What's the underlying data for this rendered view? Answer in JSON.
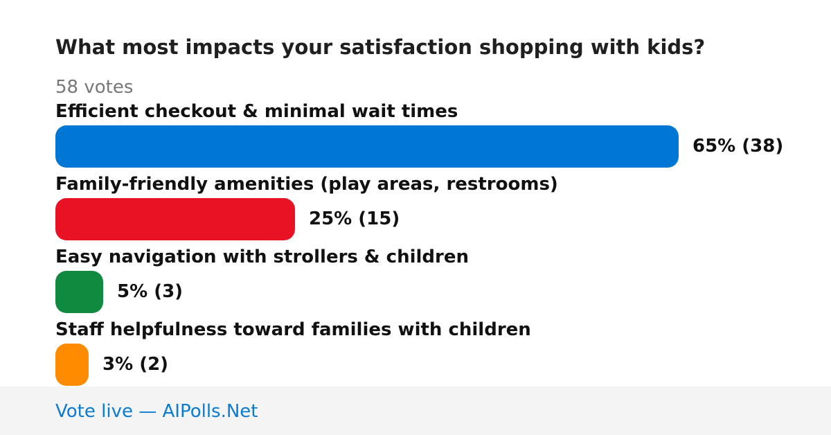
{
  "poll": {
    "question": "What most impacts your satisfaction shopping with kids?",
    "votes_label": "58 votes"
  },
  "footer": {
    "link_text": "Vote live — AIPolls.Net"
  },
  "chart_data": {
    "type": "bar",
    "orientation": "horizontal",
    "title": "What most impacts your satisfaction shopping with kids?",
    "categories": [
      "Efficient checkout & minimal wait times",
      "Family-friendly amenities (play areas, restrooms)",
      "Easy navigation with strollers & children",
      "Staff helpfulness toward families with children"
    ],
    "values": [
      65,
      25,
      5,
      3
    ],
    "counts": [
      38,
      15,
      3,
      2
    ],
    "value_labels": [
      "65% (38)",
      "25% (15)",
      "5% (3)",
      "3% (2)"
    ],
    "colors": [
      "#0077d4",
      "#e81224",
      "#108a3e",
      "#ff8c00"
    ],
    "xlim": [
      0,
      100
    ],
    "grid": false
  }
}
